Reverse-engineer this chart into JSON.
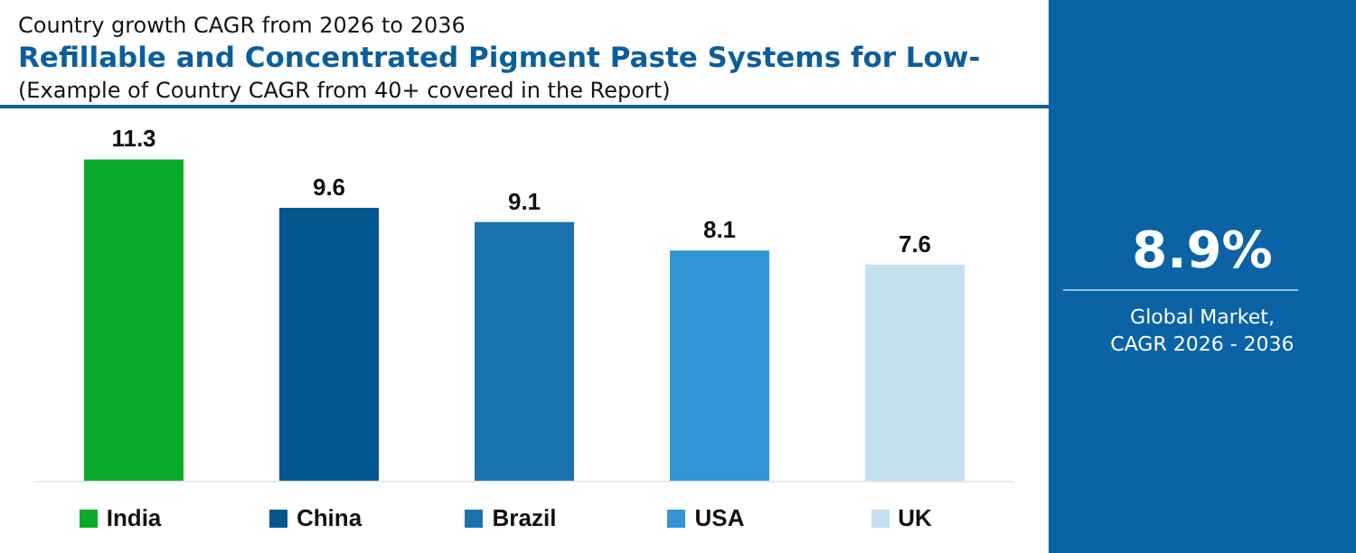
{
  "chart_data": {
    "type": "bar",
    "title": "Refillable and Concentrated Pigment Paste Systems for Low-",
    "subtitle": "(Example of Country CAGR from 40+ covered in the Report)",
    "annotations": [
      "Country growth CAGR from 2026 to 2036",
      "8.9%",
      "Global Market,\nCAGR 2026 - 2036"
    ],
    "categories": [
      "India",
      "China",
      "Brazil",
      "USA",
      "UK"
    ],
    "values": [
      11.3,
      9.6,
      9.1,
      8.1,
      7.6
    ],
    "colors": [
      "#0aab2a",
      "#04568f",
      "#1a72ae",
      "#3196d5",
      "#c4e1f3"
    ],
    "data_labels": true
  }
}
